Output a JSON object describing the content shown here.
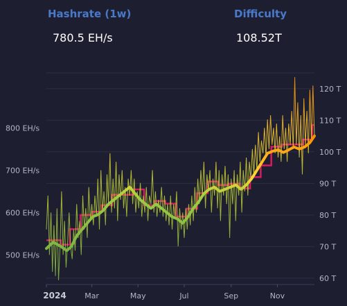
{
  "stats": {
    "hashrate": {
      "label": "Hashrate (1w)",
      "value": "780.5 EH/s"
    },
    "difficulty": {
      "label": "Difficulty",
      "value": "108.52T"
    }
  },
  "colors": {
    "background": "#1d1f31",
    "title": "#4a79c9",
    "difficulty_line": "#d81b60",
    "hashrate_low": "#7cb342",
    "hashrate_mid": "#fdd835",
    "hashrate_high": "#fb8c00",
    "grid": "#2c2f45"
  },
  "chart_data": {
    "type": "line",
    "x_range": [
      "2024-01-01",
      "2024-12-20"
    ],
    "x_ticks": [
      {
        "label": "2024",
        "date": "2024-01-01",
        "bold": true
      },
      {
        "label": "Mar",
        "date": "2024-03-01"
      },
      {
        "label": "May",
        "date": "2024-05-01"
      },
      {
        "label": "Jul",
        "date": "2024-07-01"
      },
      {
        "label": "Sep",
        "date": "2024-09-01"
      },
      {
        "label": "Nov",
        "date": "2024-11-01"
      }
    ],
    "y_left": {
      "unit": "EH/s",
      "range": [
        430,
        930
      ],
      "ticks": [
        {
          "label": "500 EH/s",
          "value": 500
        },
        {
          "label": "600 EH/s",
          "value": 600
        },
        {
          "label": "700 EH/s",
          "value": 700
        },
        {
          "label": "800 EH/s",
          "value": 800
        }
      ]
    },
    "y_right": {
      "unit": "T",
      "range": [
        58,
        125
      ],
      "ticks": [
        {
          "label": "60 T",
          "value": 60
        },
        {
          "label": "70 T",
          "value": 70
        },
        {
          "label": "80 T",
          "value": 80
        },
        {
          "label": "90 T",
          "value": 90
        },
        {
          "label": "100 T",
          "value": 100
        },
        {
          "label": "110 T",
          "value": 110
        },
        {
          "label": "120 T",
          "value": 120
        }
      ]
    },
    "gridlines": true,
    "series": [
      {
        "axis": "left",
        "style": "thin-daily",
        "points": [
          [
            "2024-01-01",
            560
          ],
          [
            "2024-01-03",
            640
          ],
          [
            "2024-01-05",
            500
          ],
          [
            "2024-01-07",
            600
          ],
          [
            "2024-01-09",
            460
          ],
          [
            "2024-01-11",
            570
          ],
          [
            "2024-01-13",
            450
          ],
          [
            "2024-01-15",
            610
          ],
          [
            "2024-01-17",
            440
          ],
          [
            "2024-01-19",
            520
          ],
          [
            "2024-01-21",
            650
          ],
          [
            "2024-01-23",
            500
          ],
          [
            "2024-01-25",
            580
          ],
          [
            "2024-01-27",
            470
          ],
          [
            "2024-01-29",
            530
          ],
          [
            "2024-01-31",
            600
          ],
          [
            "2024-02-02",
            520
          ],
          [
            "2024-02-04",
            490
          ],
          [
            "2024-02-06",
            560
          ],
          [
            "2024-02-08",
            510
          ],
          [
            "2024-02-10",
            620
          ],
          [
            "2024-02-12",
            540
          ],
          [
            "2024-02-14",
            580
          ],
          [
            "2024-02-16",
            500
          ],
          [
            "2024-02-18",
            640
          ],
          [
            "2024-02-20",
            560
          ],
          [
            "2024-02-22",
            610
          ],
          [
            "2024-02-24",
            540
          ],
          [
            "2024-02-26",
            660
          ],
          [
            "2024-02-28",
            580
          ],
          [
            "2024-03-01",
            620
          ],
          [
            "2024-03-03",
            570
          ],
          [
            "2024-03-05",
            640
          ],
          [
            "2024-03-07",
            590
          ],
          [
            "2024-03-09",
            680
          ],
          [
            "2024-03-11",
            560
          ],
          [
            "2024-03-13",
            700
          ],
          [
            "2024-03-15",
            600
          ],
          [
            "2024-03-17",
            650
          ],
          [
            "2024-03-19",
            570
          ],
          [
            "2024-03-21",
            690
          ],
          [
            "2024-03-23",
            620
          ],
          [
            "2024-03-25",
            740
          ],
          [
            "2024-03-27",
            600
          ],
          [
            "2024-03-29",
            680
          ],
          [
            "2024-03-31",
            610
          ],
          [
            "2024-04-02",
            720
          ],
          [
            "2024-04-04",
            580
          ],
          [
            "2024-04-06",
            690
          ],
          [
            "2024-04-08",
            630
          ],
          [
            "2024-04-10",
            700
          ],
          [
            "2024-04-12",
            610
          ],
          [
            "2024-04-14",
            660
          ],
          [
            "2024-04-16",
            590
          ],
          [
            "2024-04-18",
            680
          ],
          [
            "2024-04-20",
            640
          ],
          [
            "2024-04-22",
            700
          ],
          [
            "2024-04-24",
            620
          ],
          [
            "2024-04-26",
            680
          ],
          [
            "2024-04-28",
            600
          ],
          [
            "2024-04-30",
            650
          ],
          [
            "2024-05-02",
            610
          ],
          [
            "2024-05-04",
            670
          ],
          [
            "2024-05-06",
            590
          ],
          [
            "2024-05-08",
            640
          ],
          [
            "2024-05-10",
            600
          ],
          [
            "2024-05-12",
            660
          ],
          [
            "2024-05-14",
            580
          ],
          [
            "2024-05-16",
            640
          ],
          [
            "2024-05-18",
            620
          ],
          [
            "2024-05-20",
            700
          ],
          [
            "2024-05-22",
            600
          ],
          [
            "2024-05-24",
            650
          ],
          [
            "2024-05-26",
            590
          ],
          [
            "2024-05-28",
            630
          ],
          [
            "2024-05-30",
            600
          ],
          [
            "2024-06-01",
            660
          ],
          [
            "2024-06-03",
            590
          ],
          [
            "2024-06-05",
            640
          ],
          [
            "2024-06-07",
            580
          ],
          [
            "2024-06-09",
            620
          ],
          [
            "2024-06-11",
            570
          ],
          [
            "2024-06-13",
            640
          ],
          [
            "2024-06-15",
            560
          ],
          [
            "2024-06-17",
            620
          ],
          [
            "2024-06-19",
            590
          ],
          [
            "2024-06-21",
            650
          ],
          [
            "2024-06-23",
            520
          ],
          [
            "2024-06-25",
            610
          ],
          [
            "2024-06-27",
            560
          ],
          [
            "2024-06-29",
            600
          ],
          [
            "2024-07-01",
            540
          ],
          [
            "2024-07-03",
            610
          ],
          [
            "2024-07-05",
            560
          ],
          [
            "2024-07-07",
            620
          ],
          [
            "2024-07-09",
            570
          ],
          [
            "2024-07-11",
            640
          ],
          [
            "2024-07-13",
            580
          ],
          [
            "2024-07-15",
            660
          ],
          [
            "2024-07-17",
            600
          ],
          [
            "2024-07-19",
            680
          ],
          [
            "2024-07-21",
            620
          ],
          [
            "2024-07-23",
            700
          ],
          [
            "2024-07-25",
            640
          ],
          [
            "2024-07-27",
            720
          ],
          [
            "2024-07-29",
            610
          ],
          [
            "2024-07-31",
            690
          ],
          [
            "2024-08-02",
            650
          ],
          [
            "2024-08-04",
            700
          ],
          [
            "2024-08-06",
            600
          ],
          [
            "2024-08-08",
            680
          ],
          [
            "2024-08-10",
            640
          ],
          [
            "2024-08-12",
            720
          ],
          [
            "2024-08-14",
            610
          ],
          [
            "2024-08-16",
            700
          ],
          [
            "2024-08-18",
            580
          ],
          [
            "2024-08-20",
            690
          ],
          [
            "2024-08-22",
            640
          ],
          [
            "2024-08-24",
            710
          ],
          [
            "2024-08-26",
            620
          ],
          [
            "2024-08-28",
            690
          ],
          [
            "2024-08-30",
            540
          ],
          [
            "2024-09-01",
            680
          ],
          [
            "2024-09-03",
            620
          ],
          [
            "2024-09-05",
            700
          ],
          [
            "2024-09-07",
            580
          ],
          [
            "2024-09-09",
            690
          ],
          [
            "2024-09-11",
            640
          ],
          [
            "2024-09-13",
            720
          ],
          [
            "2024-09-15",
            600
          ],
          [
            "2024-09-17",
            700
          ],
          [
            "2024-09-19",
            650
          ],
          [
            "2024-09-21",
            730
          ],
          [
            "2024-09-23",
            640
          ],
          [
            "2024-09-25",
            720
          ],
          [
            "2024-09-27",
            680
          ],
          [
            "2024-09-29",
            750
          ],
          [
            "2024-10-01",
            690
          ],
          [
            "2024-10-03",
            760
          ],
          [
            "2024-10-05",
            700
          ],
          [
            "2024-10-07",
            790
          ],
          [
            "2024-10-09",
            720
          ],
          [
            "2024-10-11",
            770
          ],
          [
            "2024-10-13",
            740
          ],
          [
            "2024-10-15",
            800
          ],
          [
            "2024-10-17",
            730
          ],
          [
            "2024-10-19",
            820
          ],
          [
            "2024-10-21",
            750
          ],
          [
            "2024-10-23",
            830
          ],
          [
            "2024-10-25",
            760
          ],
          [
            "2024-10-27",
            800
          ],
          [
            "2024-10-29",
            740
          ],
          [
            "2024-10-31",
            810
          ],
          [
            "2024-11-02",
            730
          ],
          [
            "2024-11-04",
            780
          ],
          [
            "2024-11-06",
            720
          ],
          [
            "2024-11-08",
            830
          ],
          [
            "2024-11-10",
            750
          ],
          [
            "2024-11-12",
            800
          ],
          [
            "2024-11-14",
            720
          ],
          [
            "2024-11-16",
            810
          ],
          [
            "2024-11-18",
            760
          ],
          [
            "2024-11-20",
            840
          ],
          [
            "2024-11-22",
            750
          ],
          [
            "2024-11-24",
            920
          ],
          [
            "2024-11-26",
            760
          ],
          [
            "2024-11-28",
            860
          ],
          [
            "2024-11-30",
            730
          ],
          [
            "2024-12-02",
            830
          ],
          [
            "2024-12-04",
            690
          ],
          [
            "2024-12-06",
            870
          ],
          [
            "2024-12-08",
            760
          ],
          [
            "2024-12-10",
            840
          ],
          [
            "2024-12-12",
            740
          ],
          [
            "2024-12-14",
            890
          ],
          [
            "2024-12-16",
            770
          ],
          [
            "2024-12-18",
            900
          ],
          [
            "2024-12-20",
            780
          ]
        ]
      },
      {
        "axis": "left",
        "style": "thick-moving-average",
        "points": [
          [
            "2024-01-01",
            515
          ],
          [
            "2024-01-10",
            530
          ],
          [
            "2024-01-20",
            520
          ],
          [
            "2024-01-28",
            510
          ],
          [
            "2024-02-03",
            520
          ],
          [
            "2024-02-10",
            545
          ],
          [
            "2024-02-17",
            560
          ],
          [
            "2024-02-24",
            575
          ],
          [
            "2024-03-02",
            590
          ],
          [
            "2024-03-09",
            595
          ],
          [
            "2024-03-16",
            605
          ],
          [
            "2024-03-23",
            620
          ],
          [
            "2024-03-30",
            630
          ],
          [
            "2024-04-06",
            640
          ],
          [
            "2024-04-13",
            650
          ],
          [
            "2024-04-20",
            660
          ],
          [
            "2024-04-27",
            645
          ],
          [
            "2024-05-04",
            630
          ],
          [
            "2024-05-11",
            620
          ],
          [
            "2024-05-18",
            610
          ],
          [
            "2024-05-25",
            620
          ],
          [
            "2024-06-01",
            610
          ],
          [
            "2024-06-08",
            600
          ],
          [
            "2024-06-15",
            590
          ],
          [
            "2024-06-22",
            585
          ],
          [
            "2024-06-29",
            575
          ],
          [
            "2024-07-06",
            590
          ],
          [
            "2024-07-13",
            610
          ],
          [
            "2024-07-20",
            625
          ],
          [
            "2024-07-27",
            645
          ],
          [
            "2024-08-03",
            655
          ],
          [
            "2024-08-10",
            660
          ],
          [
            "2024-08-17",
            650
          ],
          [
            "2024-08-24",
            655
          ],
          [
            "2024-08-31",
            660
          ],
          [
            "2024-09-07",
            665
          ],
          [
            "2024-09-14",
            655
          ],
          [
            "2024-09-21",
            665
          ],
          [
            "2024-09-28",
            680
          ],
          [
            "2024-10-05",
            700
          ],
          [
            "2024-10-12",
            720
          ],
          [
            "2024-10-19",
            740
          ],
          [
            "2024-10-26",
            745
          ],
          [
            "2024-11-02",
            748
          ],
          [
            "2024-11-09",
            742
          ],
          [
            "2024-11-16",
            748
          ],
          [
            "2024-11-23",
            755
          ],
          [
            "2024-11-30",
            750
          ],
          [
            "2024-12-07",
            755
          ],
          [
            "2024-12-14",
            765
          ],
          [
            "2024-12-20",
            781
          ]
        ]
      },
      {
        "axis": "right",
        "style": "step",
        "points": [
          [
            "2024-01-01",
            72.0
          ],
          [
            "2024-01-20",
            70.6
          ],
          [
            "2024-02-01",
            75.5
          ],
          [
            "2024-02-15",
            80.0
          ],
          [
            "2024-03-01",
            81.0
          ],
          [
            "2024-03-14",
            83.1
          ],
          [
            "2024-03-28",
            86.4
          ],
          [
            "2024-04-11",
            86.4
          ],
          [
            "2024-04-25",
            88.1
          ],
          [
            "2024-05-09",
            83.1
          ],
          [
            "2024-05-23",
            84.4
          ],
          [
            "2024-06-06",
            83.6
          ],
          [
            "2024-06-20",
            79.5
          ],
          [
            "2024-07-04",
            82.0
          ],
          [
            "2024-07-18",
            86.9
          ],
          [
            "2024-08-01",
            90.6
          ],
          [
            "2024-08-15",
            89.5
          ],
          [
            "2024-08-29",
            89.9
          ],
          [
            "2024-09-12",
            88.4
          ],
          [
            "2024-09-26",
            92.0
          ],
          [
            "2024-10-10",
            95.7
          ],
          [
            "2024-10-24",
            101.6
          ],
          [
            "2024-11-07",
            102.3
          ],
          [
            "2024-11-21",
            102.3
          ],
          [
            "2024-12-05",
            103.9
          ],
          [
            "2024-12-17",
            108.5
          ]
        ]
      }
    ]
  }
}
